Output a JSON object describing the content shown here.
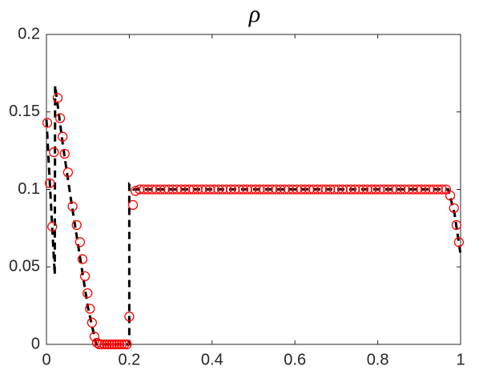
{
  "chart_data": {
    "type": "line",
    "title": "ρ",
    "xlim": [
      0,
      1
    ],
    "ylim": [
      0,
      0.2
    ],
    "xticks": [
      0,
      0.2,
      0.4,
      0.6,
      0.8,
      1
    ],
    "yticks": [
      0,
      0.05,
      0.1,
      0.15,
      0.2
    ],
    "series": [
      {
        "type": "line",
        "color": "#000000",
        "line_style": "dashed",
        "x": [
          0,
          0.02,
          0.021,
          0.04,
          0.06,
          0.08,
          0.1,
          0.12,
          0.2,
          0.2,
          0.21,
          0.97,
          0.985,
          1
        ],
        "values": [
          0.145,
          0.045,
          0.167,
          0.128,
          0.092,
          0.058,
          0.024,
          0,
          0,
          0.103,
          0.1,
          0.1,
          0.085,
          0.058
        ]
      },
      {
        "type": "scatter",
        "color": "#ff0000",
        "marker": "circle",
        "x": [
          0.002,
          0.008,
          0.014,
          0.018,
          0.027,
          0.033,
          0.039,
          0.044,
          0.052,
          0.063,
          0.073,
          0.081,
          0.087,
          0.093,
          0.099,
          0.105,
          0.11,
          0.116,
          0.122,
          0.128,
          0.134,
          0.14,
          0.146,
          0.152,
          0.158,
          0.164,
          0.17,
          0.176,
          0.182,
          0.188,
          0.194,
          0.2,
          0.209,
          0.215,
          0.225,
          0.235,
          0.245,
          0.255,
          0.265,
          0.275,
          0.285,
          0.295,
          0.305,
          0.315,
          0.325,
          0.335,
          0.345,
          0.355,
          0.365,
          0.375,
          0.385,
          0.395,
          0.405,
          0.415,
          0.425,
          0.435,
          0.445,
          0.455,
          0.465,
          0.475,
          0.485,
          0.495,
          0.505,
          0.515,
          0.525,
          0.535,
          0.545,
          0.555,
          0.565,
          0.575,
          0.585,
          0.595,
          0.605,
          0.615,
          0.625,
          0.635,
          0.645,
          0.655,
          0.665,
          0.675,
          0.685,
          0.695,
          0.705,
          0.715,
          0.725,
          0.735,
          0.745,
          0.755,
          0.765,
          0.775,
          0.785,
          0.795,
          0.805,
          0.815,
          0.825,
          0.835,
          0.845,
          0.855,
          0.865,
          0.875,
          0.885,
          0.895,
          0.905,
          0.915,
          0.925,
          0.935,
          0.945,
          0.955,
          0.965,
          0.975,
          0.984,
          0.99,
          0.996
        ],
        "values": [
          0.143,
          0.104,
          0.076,
          0.124,
          0.159,
          0.146,
          0.134,
          0.123,
          0.111,
          0.089,
          0.077,
          0.066,
          0.055,
          0.044,
          0.033,
          0.023,
          0.014,
          0.005,
          0.001,
          0,
          0,
          0,
          0,
          0,
          0,
          0,
          0,
          0,
          0,
          0,
          0,
          0.018,
          0.09,
          0.099,
          0.1,
          0.1,
          0.1,
          0.1,
          0.1,
          0.1,
          0.1,
          0.1,
          0.1,
          0.1,
          0.1,
          0.1,
          0.1,
          0.1,
          0.1,
          0.1,
          0.1,
          0.1,
          0.1,
          0.1,
          0.1,
          0.1,
          0.1,
          0.1,
          0.1,
          0.1,
          0.1,
          0.1,
          0.1,
          0.1,
          0.1,
          0.1,
          0.1,
          0.1,
          0.1,
          0.1,
          0.1,
          0.1,
          0.1,
          0.1,
          0.1,
          0.1,
          0.1,
          0.1,
          0.1,
          0.1,
          0.1,
          0.1,
          0.1,
          0.1,
          0.1,
          0.1,
          0.1,
          0.1,
          0.1,
          0.1,
          0.1,
          0.1,
          0.1,
          0.1,
          0.1,
          0.1,
          0.1,
          0.1,
          0.1,
          0.1,
          0.1,
          0.1,
          0.1,
          0.1,
          0.1,
          0.1,
          0.1,
          0.1,
          0.1,
          0.096,
          0.088,
          0.077,
          0.066
        ]
      }
    ]
  }
}
